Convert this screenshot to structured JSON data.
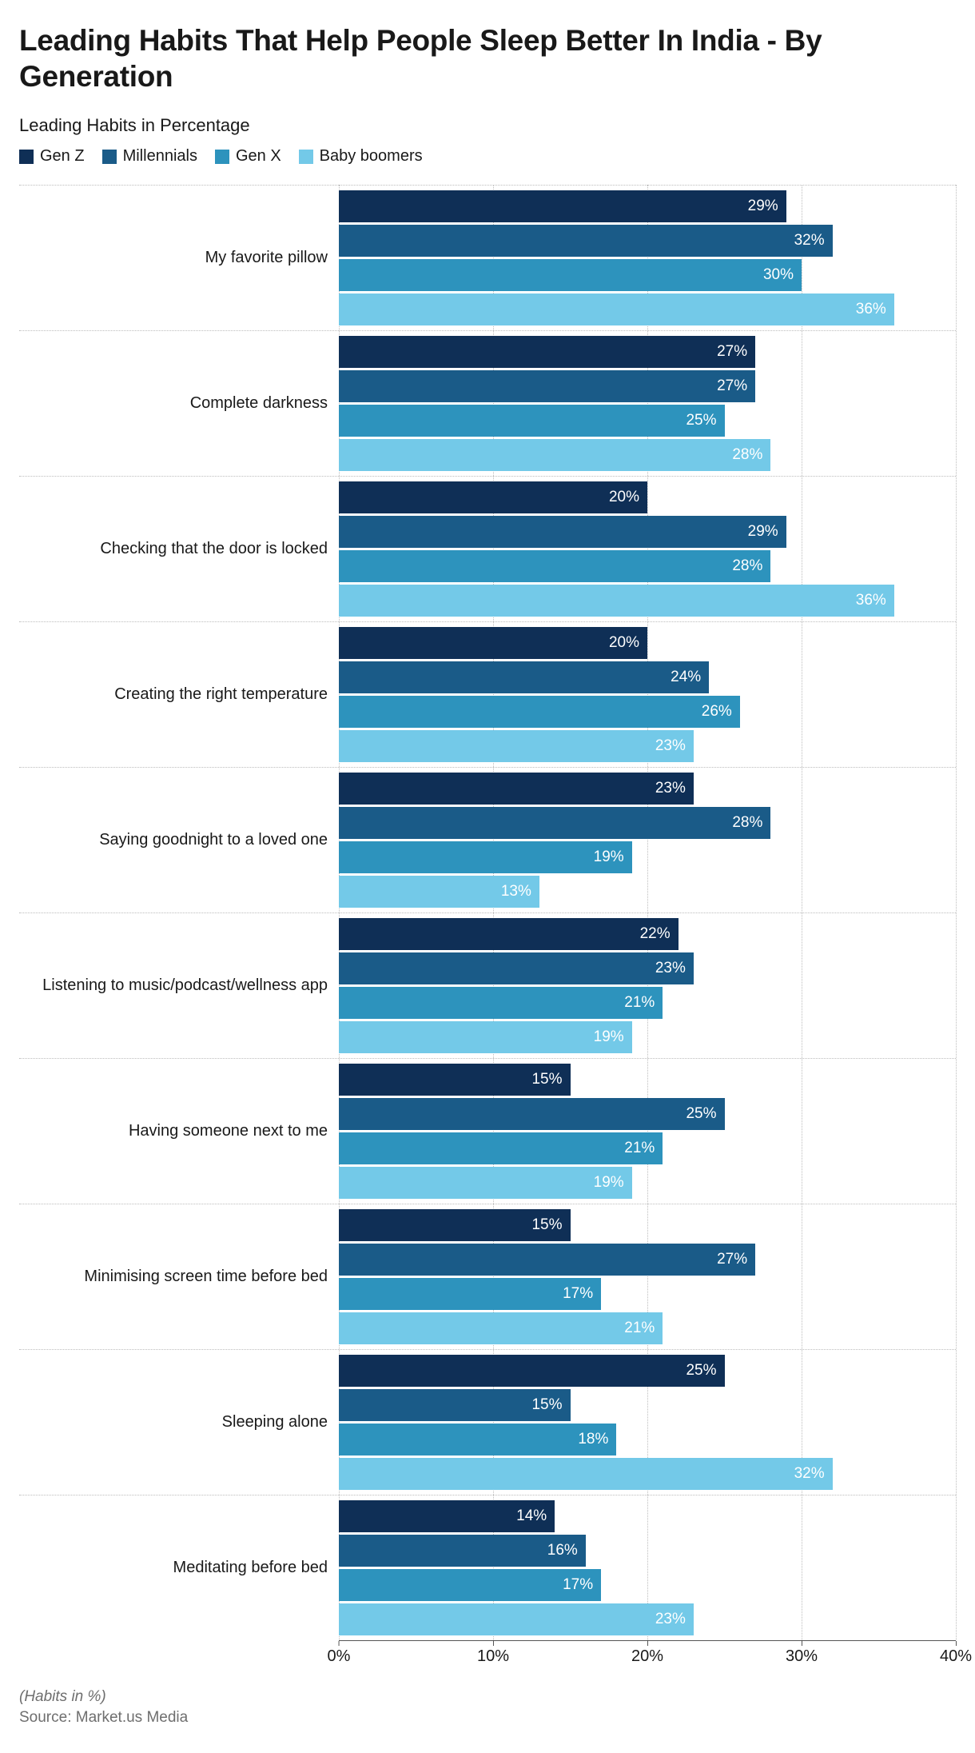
{
  "title": "Leading Habits That Help People Sleep Better In India - By Generation",
  "subtitle": "Leading Habits in Percentage",
  "footnote": "(Habits in %)",
  "source": "Source: Market.us Media",
  "chart": {
    "type": "grouped-horizontal-bar",
    "xaxis": {
      "min": 0,
      "max": 40,
      "ticks": [
        0,
        10,
        20,
        30,
        40
      ],
      "tick_labels": [
        "0%",
        "10%",
        "20%",
        "30%",
        "40%"
      ]
    },
    "grid_color": "#bdbdbd",
    "background_color": "#ffffff",
    "value_suffix": "%",
    "series": [
      {
        "name": "Gen Z",
        "color": "#0f2f56"
      },
      {
        "name": "Millennials",
        "color": "#1a5b88"
      },
      {
        "name": "Gen X",
        "color": "#2d93bd"
      },
      {
        "name": "Baby boomers",
        "color": "#73c9e8"
      }
    ],
    "categories": [
      {
        "label": "My favorite pillow",
        "values": [
          29,
          32,
          30,
          36
        ]
      },
      {
        "label": "Complete darkness",
        "values": [
          27,
          27,
          25,
          28
        ]
      },
      {
        "label": "Checking that the door is locked",
        "values": [
          20,
          29,
          28,
          36
        ]
      },
      {
        "label": "Creating the right temperature",
        "values": [
          20,
          24,
          26,
          23
        ]
      },
      {
        "label": "Saying goodnight to a loved one",
        "values": [
          23,
          28,
          19,
          13
        ]
      },
      {
        "label": "Listening to music/podcast/wellness app",
        "values": [
          22,
          23,
          21,
          19
        ]
      },
      {
        "label": "Having someone next to me",
        "values": [
          15,
          25,
          21,
          19
        ]
      },
      {
        "label": "Minimising screen time before bed",
        "values": [
          15,
          27,
          17,
          21
        ]
      },
      {
        "label": "Sleeping alone",
        "values": [
          25,
          15,
          18,
          32
        ]
      },
      {
        "label": "Meditating before bed",
        "values": [
          14,
          16,
          17,
          23
        ]
      }
    ]
  }
}
